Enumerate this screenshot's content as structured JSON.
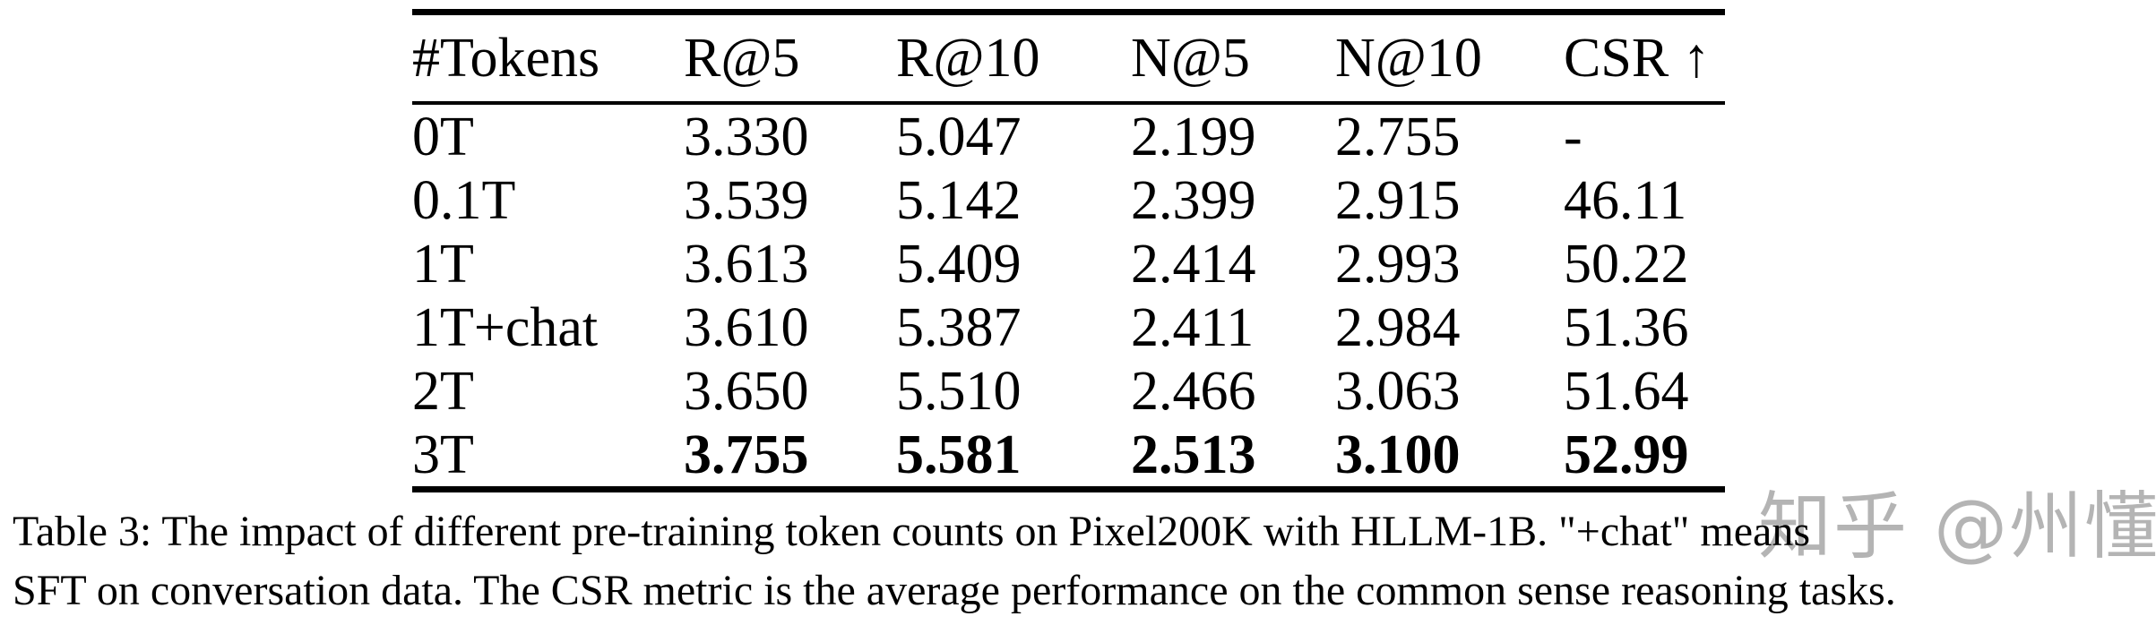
{
  "table": {
    "columns": [
      "#Tokens",
      "R@5",
      "R@10",
      "N@5",
      "N@10",
      "CSR ↑"
    ],
    "rows": [
      {
        "tokens": "0T",
        "values": [
          "3.330",
          "5.047",
          "2.199",
          "2.755",
          "-"
        ],
        "bold": false
      },
      {
        "tokens": "0.1T",
        "values": [
          "3.539",
          "5.142",
          "2.399",
          "2.915",
          "46.11"
        ],
        "bold": false
      },
      {
        "tokens": "1T",
        "values": [
          "3.613",
          "5.409",
          "2.414",
          "2.993",
          "50.22"
        ],
        "bold": false
      },
      {
        "tokens": "1T+chat",
        "values": [
          "3.610",
          "5.387",
          "2.411",
          "2.984",
          "51.36"
        ],
        "bold": false
      },
      {
        "tokens": "2T",
        "values": [
          "3.650",
          "5.510",
          "2.466",
          "3.063",
          "51.64"
        ],
        "bold": false
      },
      {
        "tokens": "3T",
        "values": [
          "3.755",
          "5.581",
          "2.513",
          "3.100",
          "52.99"
        ],
        "bold": true
      }
    ]
  },
  "caption": {
    "line1": "Table 3: The impact of different pre-training token counts on Pixel200K with HLLM-1B. \"+chat\" means",
    "line2": "SFT on conversation data. The CSR metric is the average performance on the common sense reasoning tasks."
  },
  "watermark": {
    "text": "知乎 @州懂",
    "color": "#b4b4b4"
  }
}
